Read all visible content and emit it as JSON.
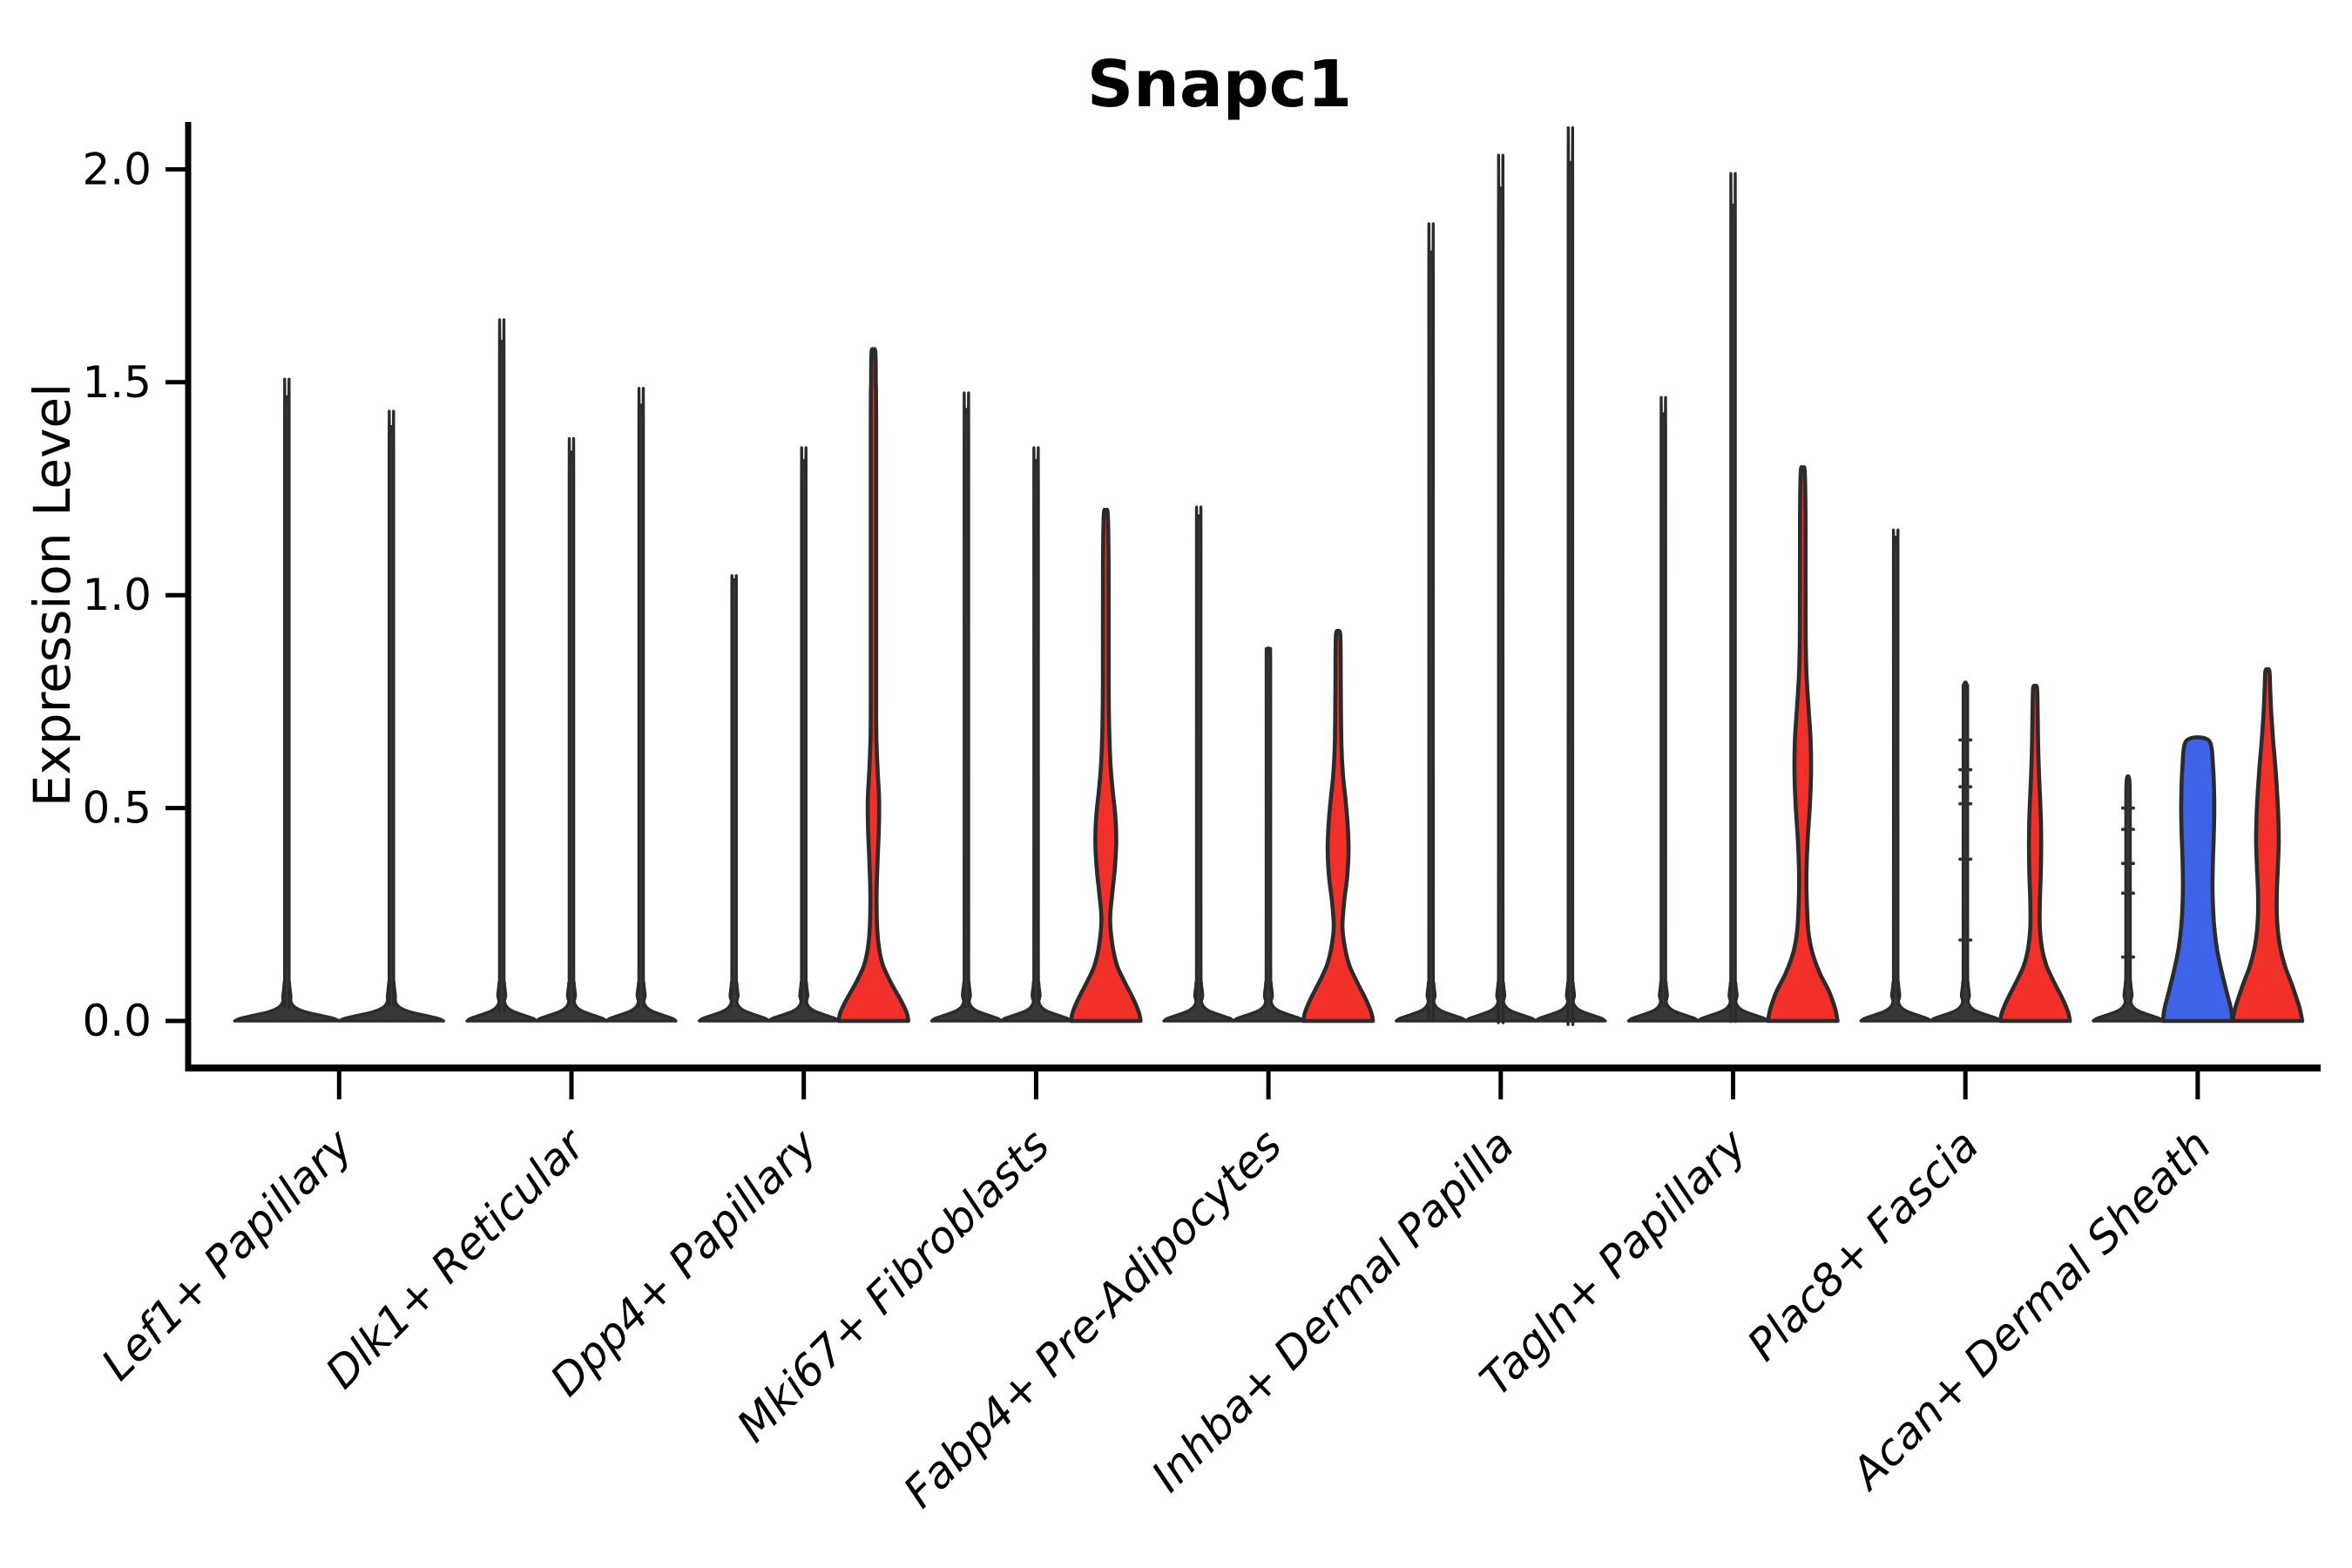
{
  "title": "Snapc1",
  "ylabel": "Expression Level",
  "chart_data": {
    "type": "violin",
    "title": "Snapc1",
    "xlabel": "",
    "ylabel": "Expression Level",
    "ylim": [
      0,
      2.05
    ],
    "grid": false,
    "legend": "none",
    "ytick_labels": [
      "0.0",
      "0.5",
      "1.0",
      "1.5",
      "2.0"
    ],
    "ytick_values": [
      0,
      0.5,
      1.0,
      1.5,
      2.0
    ],
    "categories": [
      "Lef1+ Papillary",
      "Dlk1+ Reticular",
      "Dpp4+ Papillary",
      "Mki67+ Fibroblasts",
      "Fabp4+ Pre-Adipocytes",
      "Inhba+ Dermal Papilla",
      "Tagln+ Papillary",
      "Plac8+ Fascia",
      "Acan+ Dermal Sheath"
    ],
    "colors": {
      "dark": "#383838",
      "red": "#f2302a",
      "blue": "#3e63e8",
      "outline": "#2b2b2b"
    },
    "groups": [
      {
        "category": "Lef1+ Papillary",
        "violins": [
          {
            "color": "dark",
            "type": "spike",
            "max": 1.46
          },
          {
            "color": "dark",
            "type": "spike",
            "max": 1.39
          }
        ]
      },
      {
        "category": "Dlk1+ Reticular",
        "violins": [
          {
            "color": "dark",
            "type": "spike",
            "max": 1.59
          },
          {
            "color": "dark",
            "type": "spike",
            "max": 1.33
          },
          {
            "color": "dark",
            "type": "spike",
            "max": 1.44
          }
        ]
      },
      {
        "category": "Dpp4+ Papillary",
        "violins": [
          {
            "color": "dark",
            "type": "spike",
            "max": 1.03
          },
          {
            "color": "dark",
            "type": "spike",
            "max": 1.31
          },
          {
            "color": "red",
            "type": "profile",
            "max": 1.57,
            "profile": [
              [
                0,
                40
              ],
              [
                0.02,
                38
              ],
              [
                0.05,
                31
              ],
              [
                0.09,
                20
              ],
              [
                0.13,
                11
              ],
              [
                0.17,
                6.5
              ],
              [
                0.22,
                4.2
              ],
              [
                0.3,
                3.6
              ],
              [
                0.38,
                4.8
              ],
              [
                0.45,
                6.2
              ],
              [
                0.52,
                6.5
              ],
              [
                0.58,
                5
              ],
              [
                0.64,
                3.8
              ],
              [
                0.75,
                3.1
              ],
              [
                1.4,
                3.1
              ],
              [
                1.5,
                2.7
              ],
              [
                1.57,
                2.2
              ]
            ]
          }
        ]
      },
      {
        "category": "Mki67+ Fibroblasts",
        "violins": [
          {
            "color": "dark",
            "type": "spike",
            "max": 1.43
          },
          {
            "color": "dark",
            "type": "spike",
            "max": 1.31
          },
          {
            "color": "red",
            "type": "profile",
            "max": 1.19,
            "profile": [
              [
                0,
                40
              ],
              [
                0.02,
                38
              ],
              [
                0.05,
                32
              ],
              [
                0.09,
                22
              ],
              [
                0.13,
                13
              ],
              [
                0.18,
                7.5
              ],
              [
                0.24,
                5
              ],
              [
                0.3,
                7.5
              ],
              [
                0.36,
                10.5
              ],
              [
                0.42,
                12
              ],
              [
                0.48,
                11
              ],
              [
                0.54,
                8
              ],
              [
                0.6,
                5.5
              ],
              [
                0.68,
                4
              ],
              [
                0.8,
                3.3
              ],
              [
                1.08,
                3.2
              ],
              [
                1.19,
                2.3
              ]
            ]
          }
        ]
      },
      {
        "category": "Fabp4+ Pre-Adipocytes",
        "violins": [
          {
            "color": "dark",
            "type": "spike",
            "max": 1.18
          },
          {
            "color": "dark",
            "type": "spike",
            "max": 0.87
          },
          {
            "color": "red",
            "type": "profile",
            "max": 0.91,
            "profile": [
              [
                0,
                40
              ],
              [
                0.02,
                38
              ],
              [
                0.05,
                32
              ],
              [
                0.09,
                22
              ],
              [
                0.13,
                13
              ],
              [
                0.17,
                8
              ],
              [
                0.22,
                5
              ],
              [
                0.28,
                7
              ],
              [
                0.34,
                10.5
              ],
              [
                0.4,
                12
              ],
              [
                0.46,
                11
              ],
              [
                0.52,
                8.5
              ],
              [
                0.58,
                5.5
              ],
              [
                0.65,
                3.8
              ],
              [
                0.78,
                3.1
              ],
              [
                0.87,
                2.9
              ],
              [
                0.91,
                2.3
              ]
            ]
          }
        ]
      },
      {
        "category": "Inhba+ Dermal Papilla",
        "violins": [
          {
            "color": "dark",
            "type": "spike",
            "max": 1.8
          },
          {
            "color": "dark",
            "type": "spike",
            "max": 1.95
          },
          {
            "color": "dark",
            "type": "spike",
            "max": 2.01
          }
        ]
      },
      {
        "category": "Tagln+ Papillary",
        "violins": [
          {
            "color": "dark",
            "type": "spike",
            "max": 1.42
          },
          {
            "color": "dark",
            "type": "spike",
            "max": 1.91
          },
          {
            "color": "red",
            "type": "profile",
            "max": 1.29,
            "profile": [
              [
                0,
                40
              ],
              [
                0.03,
                37
              ],
              [
                0.07,
                30
              ],
              [
                0.11,
                20
              ],
              [
                0.16,
                11
              ],
              [
                0.21,
                6.5
              ],
              [
                0.27,
                4.8
              ],
              [
                0.34,
                4.2
              ],
              [
                0.42,
                5.5
              ],
              [
                0.5,
                8
              ],
              [
                0.58,
                9.5
              ],
              [
                0.66,
                9
              ],
              [
                0.74,
                6.5
              ],
              [
                0.82,
                4.2
              ],
              [
                0.92,
                3.3
              ],
              [
                1.18,
                3.2
              ],
              [
                1.29,
                2.3
              ]
            ]
          }
        ]
      },
      {
        "category": "Plac8+ Fascia",
        "violins": [
          {
            "color": "dark",
            "type": "spike",
            "max": 1.13
          },
          {
            "color": "dark",
            "type": "spike",
            "max": 0.79,
            "nubs": [
              0.66,
              0.59,
              0.55,
              0.51,
              0.38,
              0.19
            ]
          },
          {
            "color": "red",
            "type": "profile",
            "max": 0.78,
            "profile": [
              [
                0,
                40
              ],
              [
                0.02,
                38
              ],
              [
                0.05,
                32
              ],
              [
                0.09,
                22
              ],
              [
                0.13,
                13
              ],
              [
                0.17,
                8
              ],
              [
                0.22,
                5.5
              ],
              [
                0.28,
                5.5
              ],
              [
                0.34,
                6.5
              ],
              [
                0.4,
                7
              ],
              [
                0.46,
                6.8
              ],
              [
                0.52,
                5.8
              ],
              [
                0.58,
                4.5
              ],
              [
                0.65,
                3.5
              ],
              [
                0.72,
                3
              ],
              [
                0.78,
                2.3
              ]
            ]
          }
        ]
      },
      {
        "category": "Acan+ Dermal Sheath",
        "violins": [
          {
            "color": "dark",
            "type": "spike",
            "max": 0.57,
            "nubs": [
              0.5,
              0.45,
              0.37,
              0.3,
              0.15
            ]
          },
          {
            "color": "blue",
            "type": "profile",
            "max": 0.66,
            "profile": [
              [
                0,
                40
              ],
              [
                0.03,
                38
              ],
              [
                0.07,
                33
              ],
              [
                0.12,
                27
              ],
              [
                0.17,
                22
              ],
              [
                0.22,
                19
              ],
              [
                0.27,
                17.5
              ],
              [
                0.32,
                17
              ],
              [
                0.38,
                17.5
              ],
              [
                0.44,
                18.5
              ],
              [
                0.5,
                19
              ],
              [
                0.56,
                18.5
              ],
              [
                0.6,
                17.5
              ],
              [
                0.64,
                16
              ],
              [
                0.66,
                12
              ]
            ]
          },
          {
            "color": "red",
            "type": "profile",
            "max": 0.82,
            "profile": [
              [
                0,
                40
              ],
              [
                0.03,
                37
              ],
              [
                0.08,
                29
              ],
              [
                0.13,
                20
              ],
              [
                0.18,
                14
              ],
              [
                0.24,
                11
              ],
              [
                0.3,
                10.8
              ],
              [
                0.36,
                12
              ],
              [
                0.42,
                13
              ],
              [
                0.48,
                12.5
              ],
              [
                0.54,
                11
              ],
              [
                0.6,
                9
              ],
              [
                0.66,
                6.5
              ],
              [
                0.72,
                4.5
              ],
              [
                0.78,
                3.2
              ],
              [
                0.82,
                2.4
              ]
            ]
          }
        ]
      }
    ]
  }
}
